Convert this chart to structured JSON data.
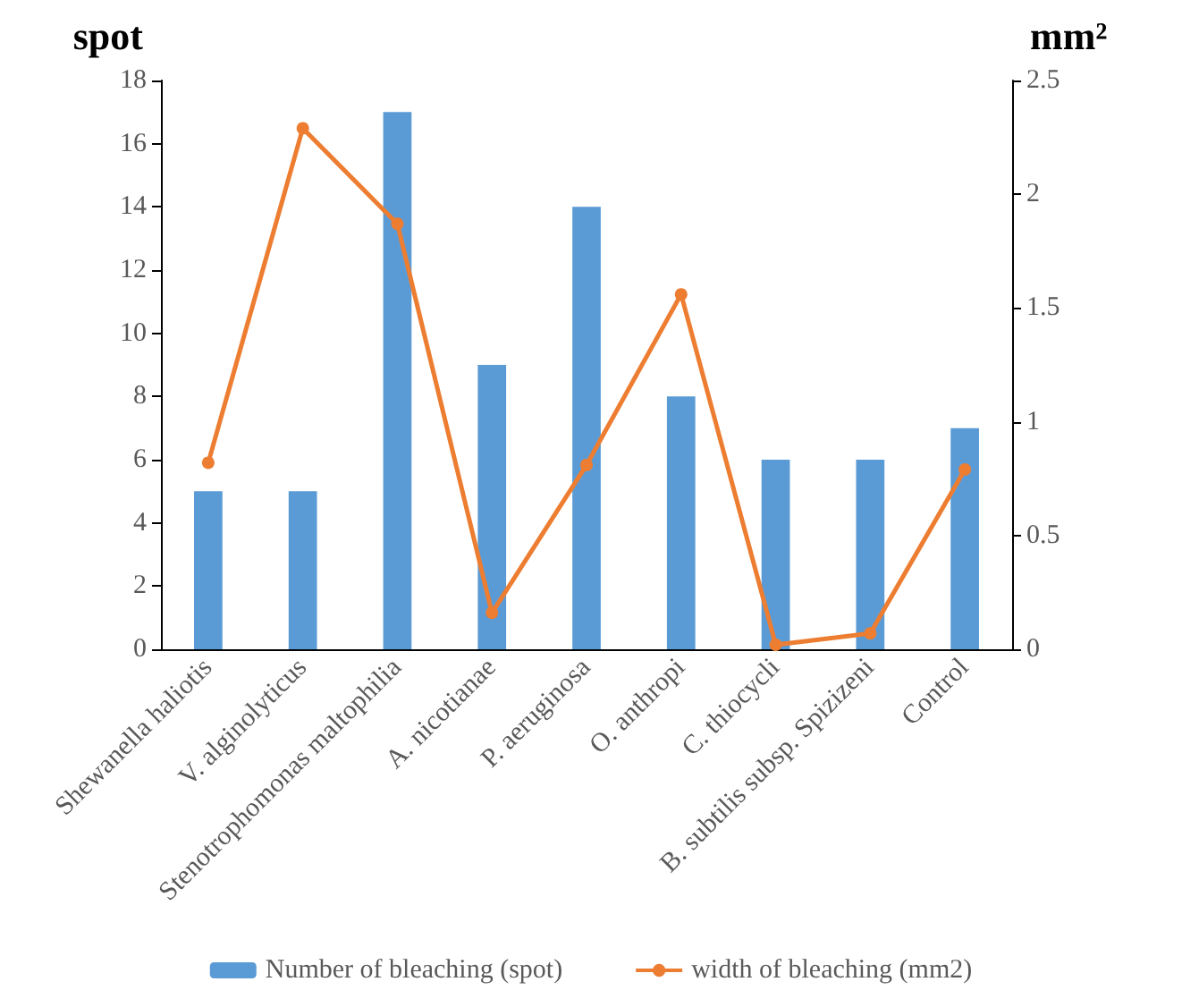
{
  "chart_data": {
    "type": "bar",
    "ylabel": "spot",
    "y2label": "mm²",
    "categories": [
      "Shewanella haliotis",
      "V. alginolyticus",
      "Stenotrophomonas maltophilia",
      "A. nicotianae",
      "P. aeruginosa",
      "O. anthropi",
      "C. thiocycli",
      "B. subtilis subsp. Spizizeni",
      "Control"
    ],
    "series": [
      {
        "name": "Number of bleaching (spot)",
        "color": "#5b9bd5",
        "values": [
          5,
          5,
          17,
          9,
          14,
          8,
          6,
          6,
          7
        ]
      },
      {
        "name": "width of bleaching (mm2)",
        "type": "line",
        "axis": "y2",
        "color": "#ed7d31",
        "marker": "circle",
        "values": [
          0.82,
          2.29,
          1.87,
          0.16,
          0.81,
          1.56,
          0.02,
          0.07,
          0.79
        ]
      }
    ],
    "ylim": [
      0,
      18
    ],
    "yticks": [
      0,
      2,
      4,
      6,
      8,
      10,
      12,
      14,
      16,
      18
    ],
    "y2lim": [
      0,
      2.5
    ],
    "y2ticks": [
      0,
      0.5,
      1,
      1.5,
      2,
      2.5
    ],
    "grid": false,
    "legend": "bottom"
  }
}
